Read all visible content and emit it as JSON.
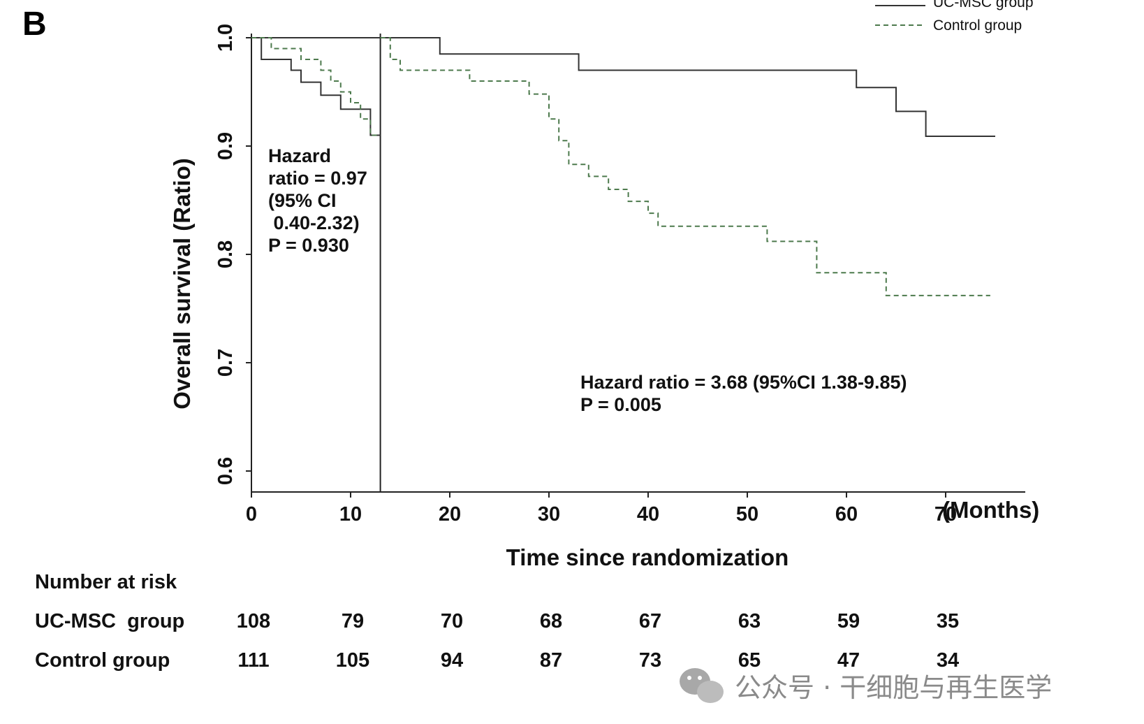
{
  "panel_label": "B",
  "chart_data": {
    "type": "line",
    "subtype": "kaplan-meier",
    "xlabel": "Time since randomization",
    "x_unit_label": "(Months)",
    "ylabel": "Overall survival (Ratio)",
    "xlim": [
      0,
      78
    ],
    "ylim": [
      0.58,
      1.0
    ],
    "xticks": [
      0,
      10,
      20,
      30,
      40,
      50,
      60,
      70
    ],
    "yticks": [
      0.6,
      0.7,
      0.8,
      0.9,
      1.0
    ],
    "ytick_labels": [
      "0.6",
      "0.7",
      "0.8",
      "0.9",
      "1.0"
    ],
    "landmark_x": 13,
    "legend_position": "top-right",
    "series": [
      {
        "name": "UC-MSC group",
        "style": "solid",
        "color": "#333333",
        "segments": [
          [
            [
              0,
              1.0
            ],
            [
              1,
              1.0
            ],
            [
              1,
              0.98
            ],
            [
              4,
              0.98
            ],
            [
              4,
              0.97
            ],
            [
              5,
              0.97
            ],
            [
              5,
              0.959
            ],
            [
              7,
              0.959
            ],
            [
              7,
              0.947
            ],
            [
              9,
              0.947
            ],
            [
              9,
              0.934
            ],
            [
              12,
              0.934
            ],
            [
              12,
              0.91
            ],
            [
              13,
              0.91
            ]
          ],
          [
            [
              0,
              1.0
            ],
            [
              19,
              1.0
            ],
            [
              19,
              0.985
            ],
            [
              33,
              0.985
            ],
            [
              33,
              0.97
            ],
            [
              61,
              0.97
            ],
            [
              61,
              0.954
            ],
            [
              65,
              0.954
            ],
            [
              65,
              0.932
            ],
            [
              68,
              0.932
            ],
            [
              68,
              0.909
            ],
            [
              75,
              0.909
            ]
          ]
        ]
      },
      {
        "name": "Control group",
        "style": "dashed",
        "color": "#4d7a4d",
        "segments": [
          [
            [
              0,
              1.0
            ],
            [
              2,
              1.0
            ],
            [
              2,
              0.99
            ],
            [
              5,
              0.99
            ],
            [
              5,
              0.98
            ],
            [
              7,
              0.98
            ],
            [
              7,
              0.97
            ],
            [
              8,
              0.97
            ],
            [
              8,
              0.96
            ],
            [
              9,
              0.96
            ],
            [
              9,
              0.95
            ],
            [
              10,
              0.95
            ],
            [
              10,
              0.94
            ],
            [
              11,
              0.94
            ],
            [
              11,
              0.925
            ],
            [
              12,
              0.925
            ],
            [
              12,
              0.91
            ],
            [
              13,
              0.91
            ]
          ],
          [
            [
              13,
              1.0
            ],
            [
              14,
              1.0
            ],
            [
              14,
              0.98
            ],
            [
              15,
              0.98
            ],
            [
              15,
              0.97
            ],
            [
              22,
              0.97
            ],
            [
              22,
              0.96
            ],
            [
              28,
              0.96
            ],
            [
              28,
              0.948
            ],
            [
              30,
              0.948
            ],
            [
              30,
              0.925
            ],
            [
              31,
              0.925
            ],
            [
              31,
              0.905
            ],
            [
              32,
              0.905
            ],
            [
              32,
              0.883
            ],
            [
              34,
              0.883
            ],
            [
              34,
              0.872
            ],
            [
              36,
              0.872
            ],
            [
              36,
              0.86
            ],
            [
              38,
              0.86
            ],
            [
              38,
              0.849
            ],
            [
              40,
              0.849
            ],
            [
              40,
              0.838
            ],
            [
              41,
              0.838
            ],
            [
              41,
              0.826
            ],
            [
              52,
              0.826
            ],
            [
              52,
              0.812
            ],
            [
              57,
              0.812
            ],
            [
              57,
              0.783
            ],
            [
              64,
              0.783
            ],
            [
              64,
              0.762
            ],
            [
              74.5,
              0.762
            ]
          ]
        ]
      }
    ],
    "annotations": [
      {
        "lines": [
          "Hazard",
          "ratio = 0.97",
          "(95% CI",
          " 0.40-2.32)",
          "P = 0.930"
        ]
      },
      {
        "lines": [
          "Hazard ratio = 3.68 (95%CI 1.38-9.85)",
          "P = 0.005"
        ]
      }
    ],
    "risk_table": {
      "title": "Number at risk",
      "times": [
        0,
        10,
        20,
        30,
        40,
        50,
        60,
        70
      ],
      "rows": [
        {
          "label": "UC-MSC  group",
          "values": [
            "108",
            "79",
            "70",
            "68",
            "67",
            "63",
            "59",
            "35"
          ]
        },
        {
          "label": "Control group",
          "values": [
            "111",
            "105",
            "94",
            "87",
            "73",
            "65",
            "47",
            "34"
          ]
        }
      ]
    }
  },
  "watermark": {
    "icon": "wechat-icon",
    "text": "公众号 · 干细胞与再生医学"
  }
}
